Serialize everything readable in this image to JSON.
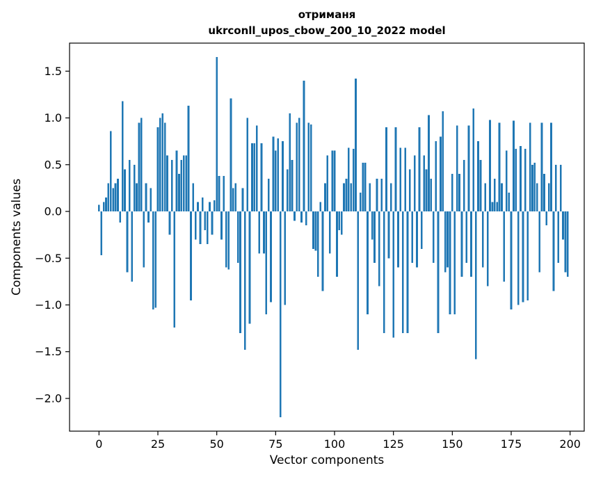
{
  "chart_data": {
    "type": "bar",
    "title": "отриманя",
    "subtitle": "ukrconll_upos_cbow_200_10_2022 model",
    "xlabel": "Vector components",
    "ylabel": "Components values",
    "bar_color": "#1f77b4",
    "axis_color": "#000000",
    "background_color": "#ffffff",
    "xlim": [
      -12.5,
      206
    ],
    "ylim": [
      -2.35,
      1.8
    ],
    "xticks": [
      0,
      25,
      50,
      75,
      100,
      125,
      150,
      175,
      200
    ],
    "yticks": [
      -2.0,
      -1.5,
      -1.0,
      -0.5,
      0.0,
      0.5,
      1.0,
      1.5
    ],
    "grid": false,
    "legend": "none",
    "bar_width": 0.8,
    "x_start": 0,
    "values": [
      0.07,
      -0.47,
      0.1,
      0.15,
      0.3,
      0.86,
      0.25,
      0.3,
      0.35,
      -0.12,
      1.18,
      0.45,
      -0.65,
      0.55,
      -0.75,
      0.5,
      0.3,
      0.95,
      1.0,
      -0.6,
      0.3,
      -0.12,
      0.25,
      -1.05,
      -1.03,
      0.9,
      1.0,
      1.05,
      0.95,
      0.6,
      -0.25,
      0.55,
      -1.24,
      0.65,
      0.4,
      0.55,
      0.6,
      0.6,
      1.13,
      -0.95,
      0.3,
      -0.3,
      0.1,
      -0.35,
      0.15,
      -0.2,
      -0.35,
      0.1,
      -0.25,
      0.12,
      1.65,
      0.38,
      -0.3,
      0.38,
      -0.6,
      -0.62,
      1.21,
      0.25,
      0.3,
      -0.55,
      -1.3,
      0.25,
      -1.48,
      1.0,
      -1.2,
      0.73,
      0.73,
      0.92,
      -0.45,
      0.73,
      -0.45,
      -1.1,
      0.35,
      -0.97,
      0.8,
      0.65,
      0.78,
      -2.2,
      0.75,
      -1.0,
      0.45,
      1.05,
      0.55,
      -0.1,
      0.95,
      1.0,
      -0.12,
      1.4,
      -0.15,
      0.95,
      0.93,
      -0.4,
      -0.42,
      -0.7,
      0.1,
      -0.85,
      0.3,
      0.6,
      -0.45,
      0.65,
      0.65,
      -0.7,
      -0.2,
      -0.25,
      0.3,
      0.35,
      0.68,
      0.3,
      0.67,
      1.42,
      -1.48,
      0.2,
      0.52,
      0.52,
      -1.1,
      0.3,
      -0.3,
      -0.55,
      0.35,
      -0.8,
      0.35,
      -1.3,
      0.9,
      -0.5,
      0.3,
      -1.35,
      0.9,
      -0.6,
      0.68,
      -1.3,
      0.68,
      -1.3,
      0.45,
      -0.55,
      0.6,
      -0.6,
      0.9,
      -0.4,
      0.6,
      0.45,
      1.03,
      0.35,
      -0.55,
      0.75,
      -1.3,
      0.8,
      1.07,
      -0.65,
      -0.6,
      -1.1,
      0.4,
      -1.1,
      0.92,
      0.4,
      -0.7,
      0.55,
      -0.55,
      0.92,
      -0.7,
      1.1,
      -1.58,
      0.75,
      0.55,
      -0.6,
      0.3,
      -0.8,
      0.98,
      0.1,
      0.35,
      0.1,
      0.95,
      0.3,
      -0.75,
      0.65,
      0.2,
      -1.05,
      0.97,
      0.67,
      -1.0,
      0.7,
      -0.97,
      0.67,
      -0.95,
      0.95,
      0.5,
      0.52,
      0.3,
      -0.65,
      0.95,
      0.4,
      -0.15,
      0.3,
      0.95,
      -0.85,
      0.5,
      -0.55,
      0.5,
      -0.3,
      -0.65,
      -0.7
    ]
  }
}
